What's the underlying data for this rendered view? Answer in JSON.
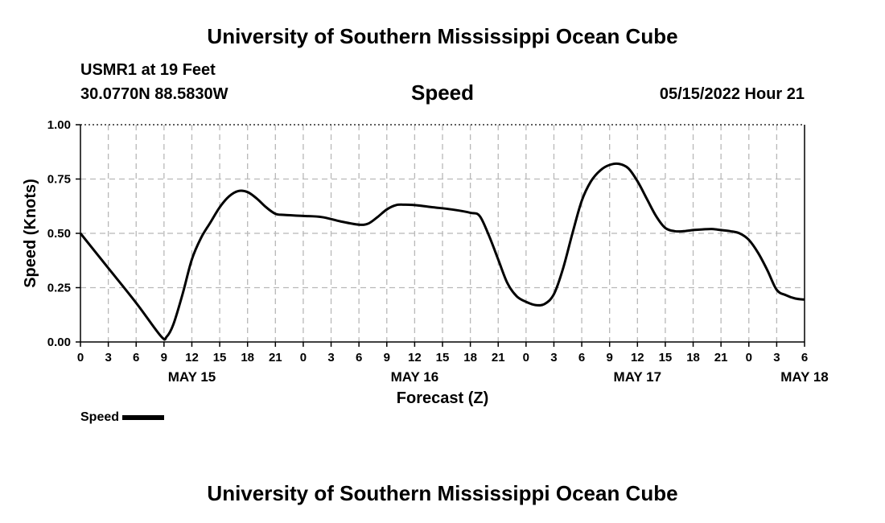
{
  "header": {
    "title": "University of Southern Mississippi Ocean Cube",
    "station": "USMR1 at 19 Feet",
    "coords": "30.0770N  88.5830W",
    "variable": "Speed",
    "datetime": "05/15/2022 Hour 21"
  },
  "footer": {
    "title": "University of Southern Mississippi Ocean Cube"
  },
  "legend": {
    "label": "Speed"
  },
  "chart_data": {
    "type": "line",
    "title": "Speed",
    "xlabel": "Forecast (Z)",
    "ylabel": "Speed (Knots)",
    "xlim": [
      0,
      78
    ],
    "ylim": [
      0,
      1
    ],
    "x_units": "hours since May 15 00Z",
    "x_tick_labels": [
      "0",
      "3",
      "6",
      "9",
      "12",
      "15",
      "18",
      "21",
      "0",
      "3",
      "6",
      "9",
      "12",
      "15",
      "18",
      "21",
      "0",
      "3",
      "6",
      "9",
      "12",
      "15",
      "18",
      "21",
      "0",
      "3",
      "6"
    ],
    "date_labels": [
      {
        "label": "MAY 15",
        "hour": 12
      },
      {
        "label": "MAY 16",
        "hour": 36
      },
      {
        "label": "MAY 17",
        "hour": 60
      },
      {
        "label": "MAY 18",
        "hour": 78
      }
    ],
    "y_ticks": [
      0,
      0.25,
      0.5,
      0.75,
      1.0
    ],
    "y_tick_labels": [
      "0.00",
      "0.25",
      "0.50",
      "0.75",
      "1.00"
    ],
    "grid": true,
    "line_color": "#000000",
    "series": [
      {
        "name": "Speed",
        "x": [
          0,
          3,
          6,
          8.7,
          9.3,
          10,
          11,
          12,
          13,
          14,
          15,
          16,
          17,
          18,
          19,
          20,
          21,
          22,
          24,
          26,
          28,
          30,
          31,
          32,
          33,
          34,
          35,
          36,
          38,
          40,
          42,
          43,
          44,
          45,
          46,
          47,
          48,
          49,
          50,
          51,
          52,
          53,
          54,
          55,
          56,
          57,
          58,
          59,
          60,
          61,
          62,
          63,
          64,
          65,
          66,
          67,
          68,
          69,
          70,
          71,
          72,
          73,
          74,
          75,
          76,
          77,
          78
        ],
        "values": [
          0.5,
          0.34,
          0.18,
          0.025,
          0.025,
          0.08,
          0.22,
          0.38,
          0.48,
          0.55,
          0.62,
          0.67,
          0.695,
          0.69,
          0.66,
          0.62,
          0.59,
          0.585,
          0.58,
          0.575,
          0.555,
          0.54,
          0.545,
          0.575,
          0.61,
          0.63,
          0.632,
          0.63,
          0.62,
          0.61,
          0.595,
          0.58,
          0.49,
          0.38,
          0.27,
          0.21,
          0.185,
          0.17,
          0.175,
          0.22,
          0.34,
          0.5,
          0.65,
          0.74,
          0.79,
          0.815,
          0.82,
          0.8,
          0.74,
          0.66,
          0.58,
          0.525,
          0.51,
          0.51,
          0.515,
          0.518,
          0.52,
          0.515,
          0.51,
          0.5,
          0.47,
          0.41,
          0.33,
          0.24,
          0.215,
          0.2,
          0.195
        ]
      }
    ]
  }
}
